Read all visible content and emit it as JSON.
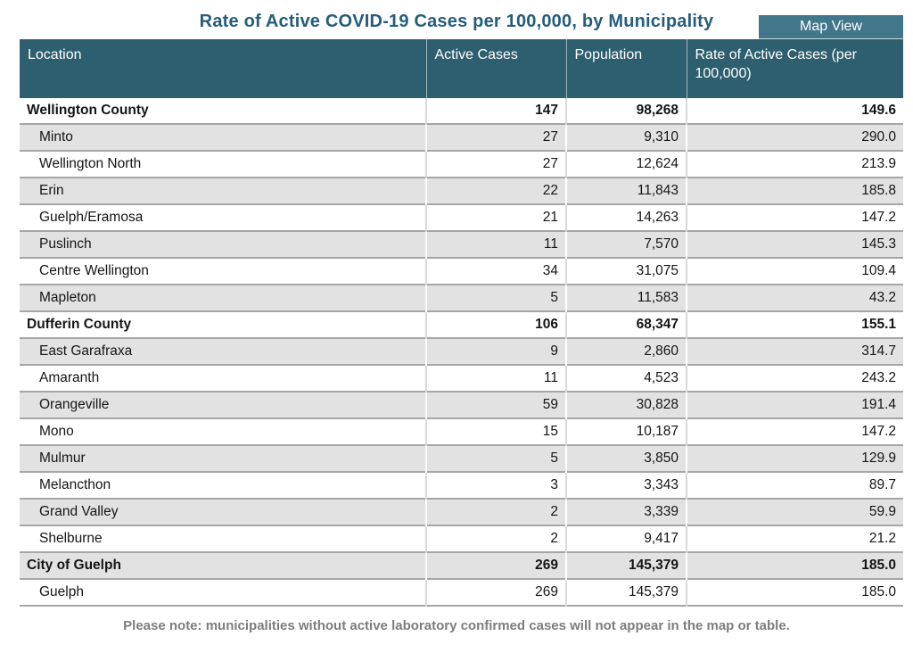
{
  "header": {
    "title": "Rate of Active COVID-19 Cases per 100,000, by Municipality",
    "map_view_label": "Map View"
  },
  "table": {
    "columns": {
      "location": "Location",
      "active_cases": "Active Cases",
      "population": "Population",
      "rate": "Rate of Active Cases (per 100,000)"
    },
    "rows": [
      {
        "location": "Wellington County",
        "type": "county",
        "active_cases": "147",
        "population": "98,268",
        "rate": "149.6"
      },
      {
        "location": "Minto",
        "type": "municipality",
        "active_cases": "27",
        "population": "9,310",
        "rate": "290.0"
      },
      {
        "location": "Wellington North",
        "type": "municipality",
        "active_cases": "27",
        "population": "12,624",
        "rate": "213.9"
      },
      {
        "location": "Erin",
        "type": "municipality",
        "active_cases": "22",
        "population": "11,843",
        "rate": "185.8"
      },
      {
        "location": "Guelph/Eramosa",
        "type": "municipality",
        "active_cases": "21",
        "population": "14,263",
        "rate": "147.2"
      },
      {
        "location": "Puslinch",
        "type": "municipality",
        "active_cases": "11",
        "population": "7,570",
        "rate": "145.3"
      },
      {
        "location": "Centre Wellington",
        "type": "municipality",
        "active_cases": "34",
        "population": "31,075",
        "rate": "109.4"
      },
      {
        "location": "Mapleton",
        "type": "municipality",
        "active_cases": "5",
        "population": "11,583",
        "rate": "43.2"
      },
      {
        "location": "Dufferin County",
        "type": "county",
        "active_cases": "106",
        "population": "68,347",
        "rate": "155.1"
      },
      {
        "location": "East Garafraxa",
        "type": "municipality",
        "active_cases": "9",
        "population": "2,860",
        "rate": "314.7"
      },
      {
        "location": "Amaranth",
        "type": "municipality",
        "active_cases": "11",
        "population": "4,523",
        "rate": "243.2"
      },
      {
        "location": "Orangeville",
        "type": "municipality",
        "active_cases": "59",
        "population": "30,828",
        "rate": "191.4"
      },
      {
        "location": "Mono",
        "type": "municipality",
        "active_cases": "15",
        "population": "10,187",
        "rate": "147.2"
      },
      {
        "location": "Mulmur",
        "type": "municipality",
        "active_cases": "5",
        "population": "3,850",
        "rate": "129.9"
      },
      {
        "location": "Melancthon",
        "type": "municipality",
        "active_cases": "3",
        "population": "3,343",
        "rate": "89.7"
      },
      {
        "location": "Grand Valley",
        "type": "municipality",
        "active_cases": "2",
        "population": "3,339",
        "rate": "59.9"
      },
      {
        "location": "Shelburne",
        "type": "municipality",
        "active_cases": "2",
        "population": "9,417",
        "rate": "21.2"
      },
      {
        "location": "City of Guelph",
        "type": "county",
        "active_cases": "269",
        "population": "145,379",
        "rate": "185.0"
      },
      {
        "location": "Guelph",
        "type": "municipality",
        "active_cases": "269",
        "population": "145,379",
        "rate": "185.0"
      }
    ]
  },
  "footnote": "Please note: municipalities without active laboratory confirmed cases will not appear in the map or table.",
  "colors": {
    "header_background": "#2e5f6e",
    "button_background": "#42768a",
    "button_underline": "#c9dbe1",
    "title_text": "#265d7a",
    "row_gray": "#e2e2e2",
    "row_separator": "#a6a6a6",
    "footnote_text": "#7d7d7d"
  }
}
